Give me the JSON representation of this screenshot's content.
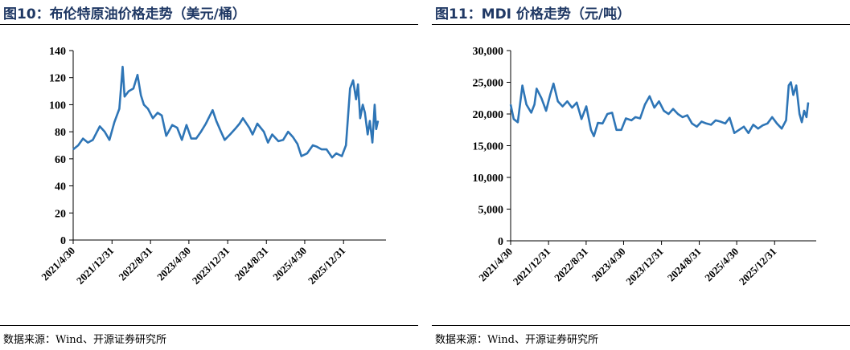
{
  "left": {
    "title": "图10：布伦特原油价格走势（美元/桶）",
    "source": "数据来源：Wind、开源证券研究所"
  },
  "right": {
    "title": "图11：MDI 价格走势（元/吨）",
    "source": "数据来源：Wind、开源证券研究所"
  },
  "chart_data": [
    {
      "type": "line",
      "title": "图10：布伦特原油价格走势（美元/桶）",
      "xlabel": "",
      "ylabel": "",
      "ylim": [
        0,
        140
      ],
      "yticks": [
        "0",
        "20",
        "40",
        "60",
        "80",
        "100",
        "120",
        "140"
      ],
      "xticks": [
        "2021/4/30",
        "2021/12/31",
        "2022/8/31",
        "2023/4/30",
        "2023/12/31",
        "2024/8/31",
        "2025/4/30",
        "2025/12/31"
      ],
      "color": "#2e75b6",
      "series": [
        {
          "x": [
            "2021-04-30",
            "2021-06-01",
            "2021-07-01",
            "2021-08-01",
            "2021-09-01",
            "2021-10-15",
            "2021-11-15",
            "2021-12-15",
            "2022-01-15",
            "2022-02-15",
            "2022-03-08",
            "2022-03-20",
            "2022-04-15",
            "2022-05-15",
            "2022-06-10",
            "2022-07-01",
            "2022-07-20",
            "2022-08-15",
            "2022-09-15",
            "2022-10-15",
            "2022-11-10",
            "2022-12-08",
            "2023-01-15",
            "2023-02-15",
            "2023-03-17",
            "2023-04-15",
            "2023-05-15",
            "2023-06-15",
            "2023-07-15",
            "2023-08-15",
            "2023-09-27",
            "2023-10-20",
            "2023-11-15",
            "2023-12-12",
            "2024-01-15",
            "2024-02-15",
            "2024-03-15",
            "2024-04-05",
            "2024-05-15",
            "2024-06-05",
            "2024-07-05",
            "2024-08-15",
            "2024-09-10",
            "2024-10-07",
            "2024-11-15",
            "2024-12-15",
            "2025-01-15",
            "2025-02-15",
            "2025-03-15",
            "2025-04-09",
            "2025-05-15",
            "2025-06-20",
            "2025-07-15",
            "2025-08-15",
            "2025-09-15",
            "2025-10-20",
            "2025-11-15",
            "2025-12-20",
            "2026-01-15",
            "2026-02-10",
            "2026-03-01",
            "2026-03-20",
            "2026-04-01",
            "2026-04-15",
            "2026-05-01",
            "2026-05-15",
            "2026-06-01",
            "2026-06-15",
            "2026-07-01",
            "2026-07-15",
            "2026-07-25",
            "2026-08-05"
          ],
          "values": [
            67,
            70,
            75,
            72,
            74,
            84,
            80,
            74,
            87,
            97,
            128,
            106,
            110,
            112,
            122,
            107,
            100,
            97,
            90,
            94,
            92,
            77,
            85,
            83,
            74,
            85,
            75,
            75,
            80,
            86,
            96,
            88,
            81,
            74,
            78,
            82,
            86,
            90,
            83,
            78,
            86,
            80,
            72,
            78,
            73,
            74,
            80,
            76,
            71,
            62,
            64,
            70,
            69,
            67,
            67,
            61,
            64,
            62,
            70,
            112,
            118,
            104,
            115,
            90,
            100,
            94,
            78,
            88,
            72,
            100,
            82,
            88
          ]
        }
      ]
    },
    {
      "type": "line",
      "title": "图11：MDI 价格走势（元/吨）",
      "xlabel": "",
      "ylabel": "",
      "ylim": [
        0,
        30000
      ],
      "yticks": [
        "0",
        "5,000",
        "10,000",
        "15,000",
        "20,000",
        "25,000",
        "30,000"
      ],
      "xticks": [
        "2021/4/30",
        "2021/12/31",
        "2022/8/31",
        "2023/4/30",
        "2023/12/31",
        "2024/8/31",
        "2025/4/30",
        "2025/12/31"
      ],
      "color": "#2e75b6",
      "series": [
        {
          "x": [
            "2021-04-30",
            "2021-05-20",
            "2021-06-15",
            "2021-07-15",
            "2021-08-10",
            "2021-09-10",
            "2021-10-01",
            "2021-10-15",
            "2021-11-15",
            "2021-12-15",
            "2022-01-10",
            "2022-02-01",
            "2022-03-01",
            "2022-04-01",
            "2022-05-01",
            "2022-06-01",
            "2022-07-01",
            "2022-08-01",
            "2022-09-01",
            "2022-10-01",
            "2022-10-20",
            "2022-11-15",
            "2022-12-15",
            "2023-01-15",
            "2023-02-15",
            "2023-03-15",
            "2023-04-15",
            "2023-05-15",
            "2023-06-20",
            "2023-07-15",
            "2023-08-15",
            "2023-09-15",
            "2023-10-15",
            "2023-11-15",
            "2023-12-15",
            "2024-01-15",
            "2024-02-15",
            "2024-03-15",
            "2024-04-15",
            "2024-05-15",
            "2024-06-15",
            "2024-07-15",
            "2024-08-15",
            "2024-09-15",
            "2024-10-15",
            "2024-11-15",
            "2024-12-15",
            "2025-01-15",
            "2025-02-15",
            "2025-03-15",
            "2025-04-15",
            "2025-05-15",
            "2025-06-15",
            "2025-07-15",
            "2025-08-15",
            "2025-09-15",
            "2025-10-15",
            "2025-11-15",
            "2025-12-15",
            "2026-01-15",
            "2026-02-15",
            "2026-03-15",
            "2026-04-01",
            "2026-04-15",
            "2026-05-01",
            "2026-05-20",
            "2026-06-10",
            "2026-06-25",
            "2026-07-10",
            "2026-07-25",
            "2026-08-05"
          ],
          "values": [
            21500,
            19200,
            18700,
            24500,
            21500,
            20200,
            21500,
            24000,
            22500,
            20500,
            23000,
            24800,
            22000,
            21200,
            22000,
            21000,
            21800,
            19200,
            21200,
            17500,
            16500,
            18600,
            18500,
            20000,
            20200,
            17500,
            17500,
            19300,
            19000,
            19500,
            19300,
            21500,
            22800,
            21000,
            22000,
            20500,
            20000,
            20800,
            20000,
            19500,
            19800,
            18500,
            18000,
            18800,
            18500,
            18300,
            19000,
            18800,
            18500,
            19400,
            17000,
            17500,
            18000,
            17000,
            18300,
            17700,
            18200,
            18500,
            19500,
            18500,
            17700,
            19000,
            24500,
            25000,
            23000,
            24500,
            20000,
            18700,
            20500,
            19500,
            21800
          ]
        }
      ]
    }
  ]
}
